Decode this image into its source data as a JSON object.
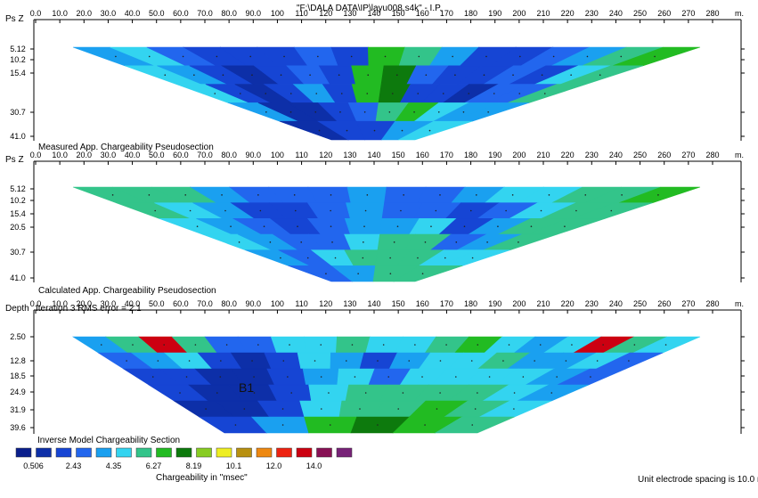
{
  "window_title": "\"F:\\DALA DATA\\IP\\layu008.s4k\" - I.P.",
  "annotation": "B1",
  "footer_note": "Unit electrode spacing is 10.0 m.",
  "x_unit": "m.",
  "x_ticks": [
    "0.0",
    "10.0",
    "20.0",
    "30.0",
    "40.0",
    "50.0",
    "60.0",
    "70.0",
    "80.0",
    "90.0",
    "100",
    "110",
    "120",
    "130",
    "140",
    "150",
    "160",
    "170",
    "180",
    "190",
    "200",
    "210",
    "220",
    "230",
    "240",
    "250",
    "260",
    "270",
    "280"
  ],
  "panels": [
    {
      "axis_label": "Ps Z",
      "caption": "",
      "depth_ticks": [
        "5.12",
        "10.2",
        "15.4",
        "30.7",
        "41.0"
      ]
    },
    {
      "axis_label": "Ps Z",
      "caption": "Measured App. Chargeability Pseudosection",
      "depth_ticks": [
        "5.12",
        "10.2",
        "15.4",
        "20.5",
        "30.7",
        "41.0"
      ]
    },
    {
      "axis_label": "Depth",
      "caption": "Calculated App. Chargeability Pseudosection",
      "iteration_text": "Iteration 3 RMS error = 2.1",
      "depth_ticks": [
        "2.50",
        "12.8",
        "18.5",
        "24.9",
        "31.9",
        "39.6"
      ]
    }
  ],
  "legend": {
    "title": "Inverse Model Chargeability Section",
    "unit_label": "Chargeability in \"msec\"",
    "colors": [
      "#0a1f8c",
      "#0d2fa8",
      "#1645d4",
      "#2266ee",
      "#1aa0f0",
      "#33d4f0",
      "#33c48a",
      "#22bb22",
      "#0d7a0d",
      "#88cc22",
      "#eeee22",
      "#b89010",
      "#ee8811",
      "#ee2211",
      "#cc0011",
      "#881155",
      "#772277"
    ],
    "labels": [
      "0.506",
      "2.43",
      "4.35",
      "6.27",
      "8.19",
      "10.1",
      "12.0",
      "14.0"
    ]
  },
  "chart_data": [
    {
      "type": "heatmap",
      "title": "",
      "subtitle": "",
      "xlabel": "m.",
      "ylabel": "Ps Z",
      "x_range": [
        0,
        280
      ],
      "depth_levels": [
        5.12,
        10.2,
        15.4,
        30.7,
        41.0
      ],
      "description_values": "Measured apparent chargeability pseudosection (msec)",
      "values_by_level": [
        [
          4,
          5,
          3,
          2,
          2,
          2,
          3,
          2,
          7,
          6,
          4,
          2,
          2,
          3,
          4,
          6,
          7
        ],
        [
          5,
          4,
          2,
          1,
          2,
          3,
          2,
          7,
          8,
          3,
          2,
          2,
          3,
          2,
          5,
          6
        ],
        [
          5,
          2,
          1,
          2,
          4,
          2,
          7,
          8,
          2,
          2,
          1,
          3,
          3,
          6
        ],
        [
          4,
          1,
          1,
          2,
          3,
          6,
          7,
          5,
          4,
          4
        ],
        [
          1,
          2,
          2,
          4,
          5
        ]
      ]
    },
    {
      "type": "heatmap",
      "title": "",
      "xlabel": "m.",
      "ylabel": "Ps Z",
      "x_range": [
        0,
        280
      ],
      "depth_levels": [
        5.12,
        10.2,
        15.4,
        20.5,
        30.7,
        41.0
      ],
      "description_values": "Calculated apparent chargeability pseudosection (msec)",
      "values_by_level": [
        [
          6,
          6,
          6,
          4,
          3,
          3,
          3,
          4,
          3,
          3,
          4,
          5,
          5,
          6,
          6,
          7
        ],
        [
          6,
          5,
          4,
          2,
          2,
          3,
          4,
          3,
          3,
          2,
          3,
          5,
          6,
          6
        ],
        [
          5,
          4,
          3,
          2,
          3,
          4,
          4,
          5,
          2,
          4,
          6,
          6
        ],
        [
          5,
          4,
          3,
          3,
          5,
          6,
          6,
          3,
          4,
          6
        ],
        [
          4,
          3,
          5,
          6,
          6,
          6,
          5,
          5
        ],
        [
          3,
          4,
          6,
          6
        ]
      ]
    },
    {
      "type": "heatmap",
      "title": "",
      "xlabel": "m.",
      "ylabel": "Depth",
      "x_range": [
        0,
        280
      ],
      "depth_levels": [
        2.5,
        12.8,
        18.5,
        24.9,
        31.9,
        39.6
      ],
      "description_values": "Inverse model chargeability section (msec), iteration 3",
      "values_by_level": [
        [
          4,
          6,
          14,
          6,
          3,
          3,
          5,
          5,
          6,
          5,
          5,
          6,
          7,
          5,
          4,
          5,
          14,
          6,
          5
        ],
        [
          3,
          4,
          5,
          2,
          1,
          2,
          5,
          4,
          2,
          4,
          5,
          5,
          6,
          4,
          4,
          5,
          3
        ],
        [
          2,
          2,
          1,
          1,
          2,
          4,
          5,
          3,
          5,
          5,
          5,
          5,
          4,
          3
        ],
        [
          2,
          1,
          1,
          2,
          5,
          6,
          6,
          6,
          6,
          5,
          4
        ],
        [
          1,
          1,
          2,
          5,
          6,
          6,
          7,
          6,
          5
        ],
        [
          2,
          4,
          7,
          8,
          7,
          6
        ]
      ]
    }
  ]
}
